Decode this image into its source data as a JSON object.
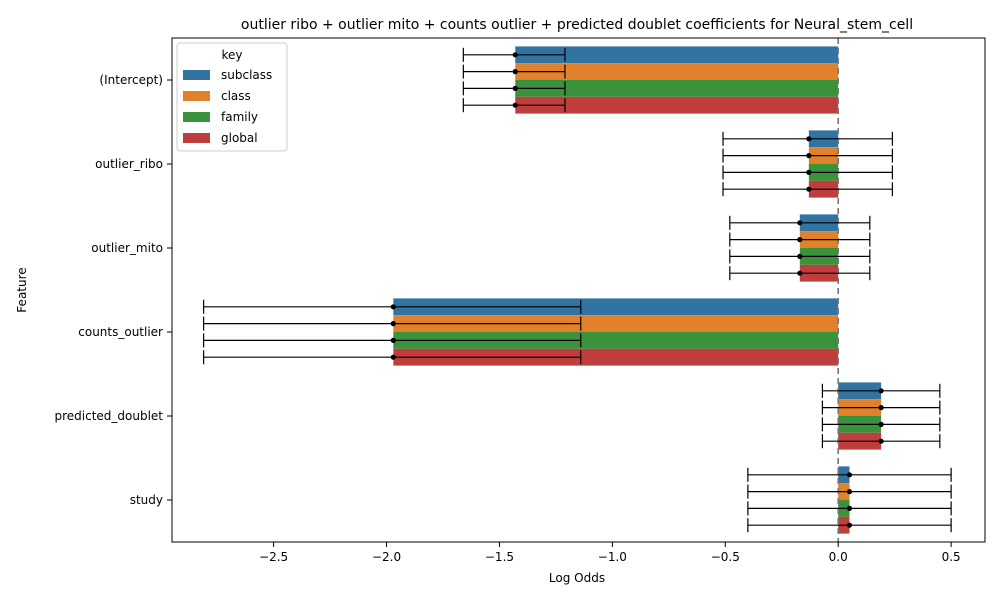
{
  "chart_data": {
    "type": "bar",
    "orientation": "horizontal",
    "title": "outlier ribo + outlier mito + counts outlier + predicted doublet coefficients for Neural_stem_cell",
    "xlabel": "Log Odds",
    "ylabel": "Feature",
    "xlim": [
      -2.95,
      0.65
    ],
    "xticks": [
      -2.5,
      -2.0,
      -1.5,
      -1.0,
      -0.5,
      0.0,
      0.5
    ],
    "xtick_labels": [
      "−2.5",
      "−2.0",
      "−1.5",
      "−1.0",
      "−0.5",
      "0.0",
      "0.5"
    ],
    "reference_line_x": 0.0,
    "categories": [
      "(Intercept)",
      "outlier_ribo",
      "outlier_mito",
      "counts_outlier",
      "predicted_doublet",
      "study"
    ],
    "legend": {
      "title": "key",
      "placement": "upper-left"
    },
    "series": [
      {
        "name": "subclass",
        "color": "#3274a1",
        "values": [
          -1.43,
          -0.13,
          -0.17,
          -1.97,
          0.19,
          0.05
        ],
        "ci_low": [
          -1.66,
          -0.51,
          -0.48,
          -2.81,
          -0.07,
          -0.4
        ],
        "ci_high": [
          -1.21,
          0.24,
          0.14,
          -1.14,
          0.45,
          0.5
        ]
      },
      {
        "name": "class",
        "color": "#e1812c",
        "values": [
          -1.43,
          -0.13,
          -0.17,
          -1.97,
          0.19,
          0.05
        ],
        "ci_low": [
          -1.66,
          -0.51,
          -0.48,
          -2.81,
          -0.07,
          -0.4
        ],
        "ci_high": [
          -1.21,
          0.24,
          0.14,
          -1.14,
          0.45,
          0.5
        ]
      },
      {
        "name": "family",
        "color": "#3a923a",
        "values": [
          -1.43,
          -0.13,
          -0.17,
          -1.97,
          0.19,
          0.05
        ],
        "ci_low": [
          -1.66,
          -0.51,
          -0.48,
          -2.81,
          -0.07,
          -0.4
        ],
        "ci_high": [
          -1.21,
          0.24,
          0.14,
          -1.14,
          0.45,
          0.5
        ]
      },
      {
        "name": "global",
        "color": "#c03d3e",
        "values": [
          -1.43,
          -0.13,
          -0.17,
          -1.97,
          0.19,
          0.05
        ],
        "ci_low": [
          -1.66,
          -0.51,
          -0.48,
          -2.81,
          -0.07,
          -0.4
        ],
        "ci_high": [
          -1.21,
          0.24,
          0.14,
          -1.14,
          0.45,
          0.5
        ]
      }
    ]
  }
}
